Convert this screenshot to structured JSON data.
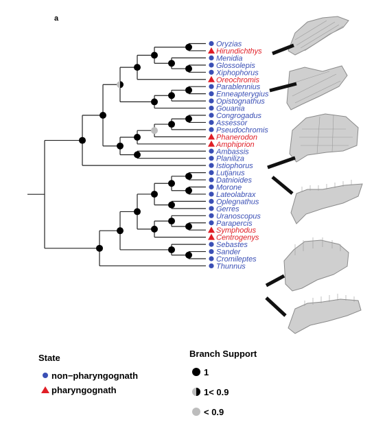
{
  "panel_label": "a",
  "taxa": [
    {
      "name": "Oryzias",
      "state": "non-pharyngognath"
    },
    {
      "name": "Hirundichthys",
      "state": "pharyngognath"
    },
    {
      "name": "Menidia",
      "state": "non-pharyngognath"
    },
    {
      "name": "Glossolepis",
      "state": "non-pharyngognath"
    },
    {
      "name": "Xiphophorus",
      "state": "non-pharyngognath"
    },
    {
      "name": "Oreochromis",
      "state": "pharyngognath"
    },
    {
      "name": "Parablennius",
      "state": "non-pharyngognath"
    },
    {
      "name": "Enneapterygius",
      "state": "non-pharyngognath"
    },
    {
      "name": "Opistognathus",
      "state": "non-pharyngognath"
    },
    {
      "name": "Gouania",
      "state": "non-pharyngognath"
    },
    {
      "name": "Congrogadus",
      "state": "non-pharyngognath"
    },
    {
      "name": "Assessor",
      "state": "non-pharyngognath"
    },
    {
      "name": "Pseudochromis",
      "state": "non-pharyngognath"
    },
    {
      "name": "Phanerodon",
      "state": "pharyngognath"
    },
    {
      "name": "Amphiprion",
      "state": "pharyngognath"
    },
    {
      "name": "Ambassis",
      "state": "non-pharyngognath"
    },
    {
      "name": "Planiliza",
      "state": "non-pharyngognath"
    },
    {
      "name": "Istiophorus",
      "state": "non-pharyngognath"
    },
    {
      "name": "Lutjanus",
      "state": "non-pharyngognath"
    },
    {
      "name": "Datnioides",
      "state": "non-pharyngognath"
    },
    {
      "name": "Morone",
      "state": "non-pharyngognath"
    },
    {
      "name": "Lateolabrax",
      "state": "non-pharyngognath"
    },
    {
      "name": "Oplegnathus",
      "state": "non-pharyngognath"
    },
    {
      "name": "Gerres",
      "state": "non-pharyngognath"
    },
    {
      "name": "Uranoscopus",
      "state": "non-pharyngognath"
    },
    {
      "name": "Parapercis",
      "state": "non-pharyngognath"
    },
    {
      "name": "Symphodus",
      "state": "pharyngognath"
    },
    {
      "name": "Centrogenys",
      "state": "pharyngognath"
    },
    {
      "name": "Sebastes",
      "state": "non-pharyngognath"
    },
    {
      "name": "Sander",
      "state": "non-pharyngognath"
    },
    {
      "name": "Cromileptes",
      "state": "non-pharyngognath"
    },
    {
      "name": "Thunnus",
      "state": "non-pharyngognath"
    }
  ],
  "colors": {
    "non_pharyngognath": "#3a4fb5",
    "pharyngognath": "#e01e26",
    "support_full": "#000000",
    "support_low": "#bdbdbd"
  },
  "legend": {
    "state_title": "State",
    "state_items": [
      {
        "symbol": "circle",
        "label": "non−pharyngognath"
      },
      {
        "symbol": "triangle",
        "label": "pharyngognath"
      }
    ],
    "support_title": "Branch Support",
    "support_items": [
      {
        "symbol": "black-circle",
        "label": "1"
      },
      {
        "symbol": "half-circle",
        "label": "1< 0.9"
      },
      {
        "symbol": "grey-circle",
        "label": "< 0.9"
      }
    ]
  }
}
